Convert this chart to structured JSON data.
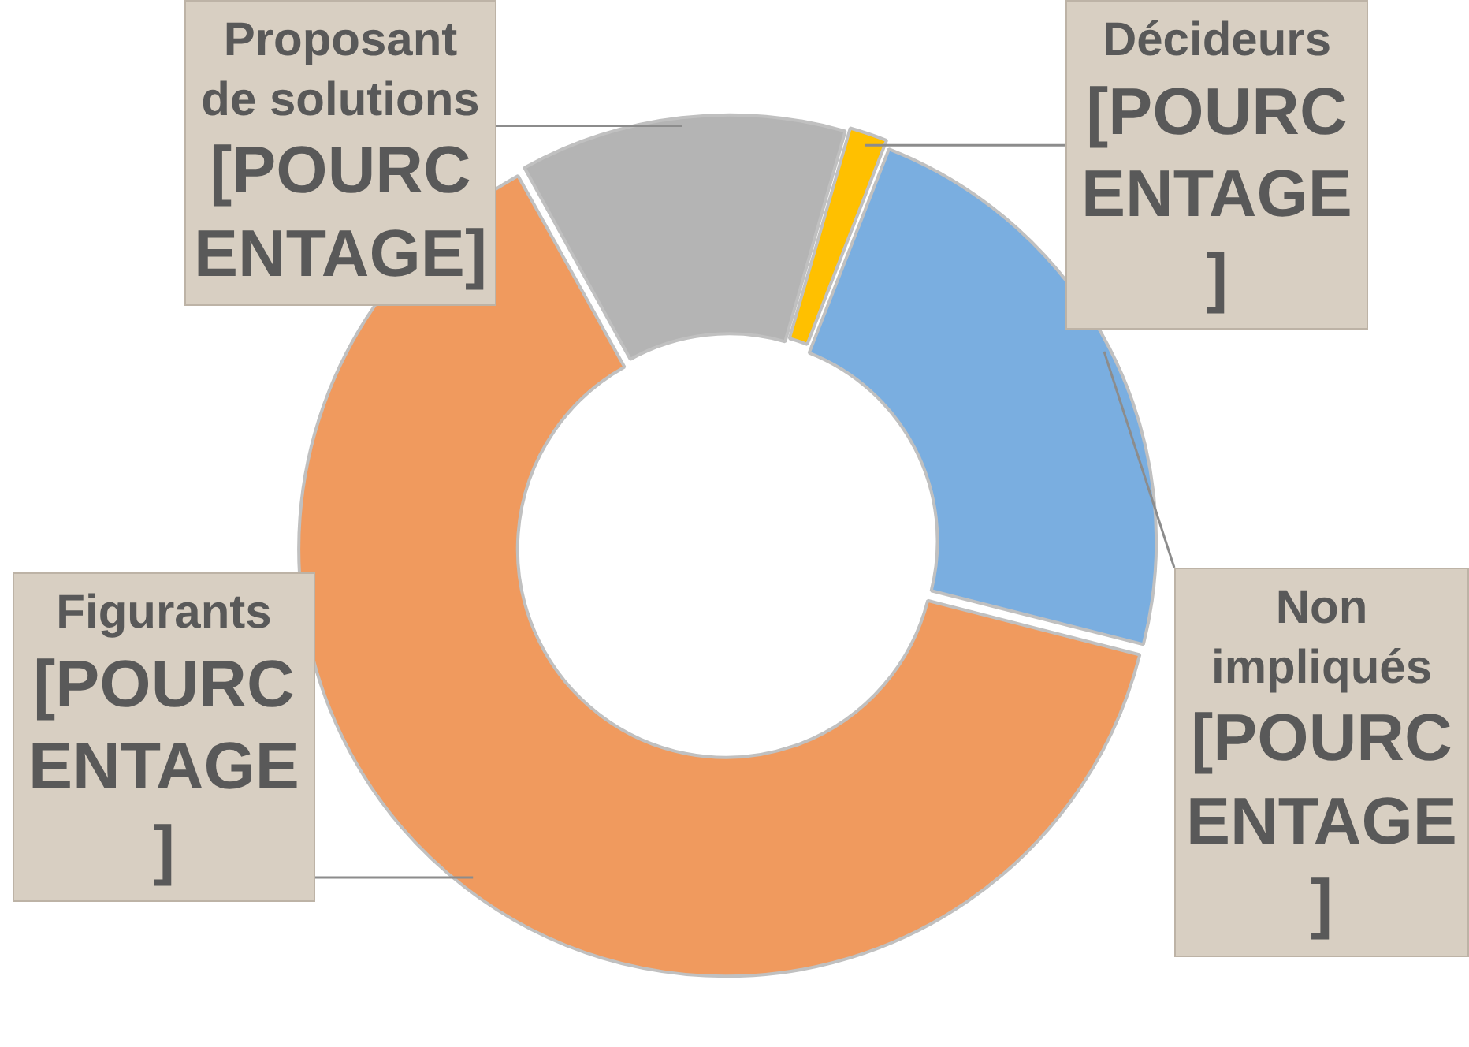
{
  "chart_data": {
    "type": "donut",
    "categories": [
      "Décideurs",
      "Non impliqués",
      "Figurants",
      "Proposant de solutions"
    ],
    "values": [
      1.5,
      23,
      63,
      12.5
    ],
    "colors": [
      "#ffc000",
      "#7aaee0",
      "#f09a5e",
      "#b4b4b4"
    ],
    "value_labels": [
      "[POURCENTAGE]",
      "[POURCENTAGE]",
      "[POURCENTAGE]",
      "[POURCENTAGE]"
    ],
    "legend": false
  }
}
